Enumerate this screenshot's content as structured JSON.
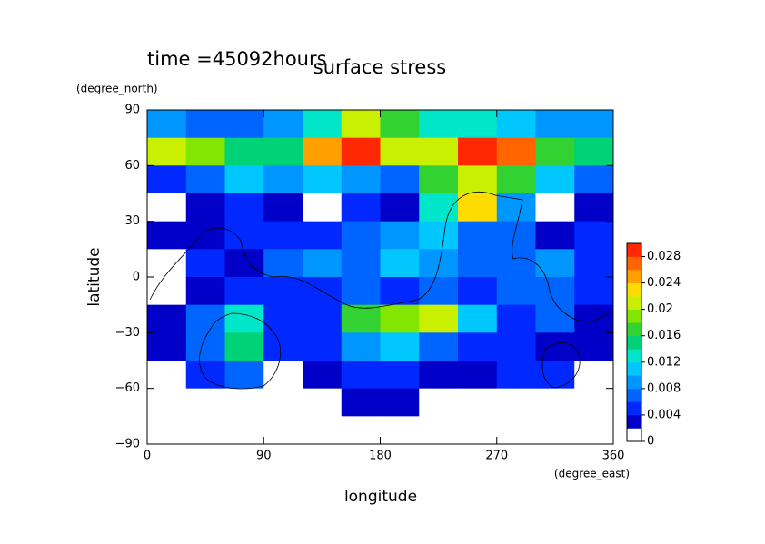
{
  "chart_data": {
    "type": "heatmap",
    "title": "surface stress",
    "subtitle": "time =45092hours",
    "x_label": "longitude",
    "y_label": "latitude",
    "x_unit": "(degree_east)",
    "y_unit": "(degree_north)",
    "x": [
      15,
      45,
      75,
      105,
      135,
      165,
      195,
      225,
      255,
      285,
      315,
      345
    ],
    "y": [
      82.5,
      67.5,
      52.5,
      37.5,
      22.5,
      7.5,
      -7.5,
      -22.5,
      -37.5,
      -52.5,
      -67.5,
      -82.5
    ],
    "z": [
      [
        0.008,
        0.006,
        0.006,
        0.008,
        0.012,
        0.02,
        0.016,
        0.012,
        0.012,
        0.01,
        0.008,
        0.008
      ],
      [
        0.02,
        0.018,
        0.014,
        0.014,
        0.024,
        0.03,
        0.02,
        0.02,
        0.03,
        0.026,
        0.016,
        0.014
      ],
      [
        0.004,
        0.006,
        0.01,
        0.008,
        0.01,
        0.008,
        0.006,
        0.016,
        0.02,
        0.016,
        0.01,
        0.006
      ],
      [
        0,
        0.002,
        0.004,
        0.002,
        0,
        0.004,
        0.002,
        0.012,
        0.022,
        0.008,
        0,
        0.002
      ],
      [
        0.002,
        0.002,
        0.004,
        0.004,
        0.004,
        0.006,
        0.008,
        0.01,
        0.006,
        0.006,
        0.002,
        0.004
      ],
      [
        0,
        0.004,
        0.002,
        0.006,
        0.008,
        0.006,
        0.01,
        0.008,
        0.006,
        0.006,
        0.008,
        0.004
      ],
      [
        0,
        0.002,
        0.004,
        0.004,
        0.004,
        0.006,
        0.004,
        0.006,
        0.004,
        0.006,
        0.006,
        0.004
      ],
      [
        0.002,
        0.006,
        0.012,
        0.004,
        0.004,
        0.016,
        0.018,
        0.02,
        0.01,
        0.004,
        0.006,
        0.002
      ],
      [
        0.002,
        0.006,
        0.014,
        0.004,
        0.004,
        0.008,
        0.01,
        0.006,
        0.004,
        0.004,
        0.002,
        0.002
      ],
      [
        0,
        0.004,
        0.006,
        0,
        0.002,
        0.004,
        0.004,
        0.002,
        0.002,
        0.004,
        0.004,
        0
      ],
      [
        0,
        0,
        0,
        0,
        0,
        0.002,
        0.002,
        0,
        0,
        0,
        0,
        0
      ],
      [
        0,
        0,
        0,
        0,
        0,
        0,
        0,
        0,
        0,
        0,
        0,
        0
      ]
    ],
    "xlim": [
      0,
      360
    ],
    "xticks": [
      0,
      90,
      180,
      270,
      360
    ],
    "ylim": [
      -90,
      90
    ],
    "yticks": [
      {
        "value": -90,
        "label": "−90"
      },
      {
        "value": -60,
        "label": "−60"
      },
      {
        "value": -30,
        "label": "−30"
      },
      0,
      30,
      60,
      90
    ],
    "colorbar": {
      "lim": [
        0,
        0.03
      ],
      "ticks": [
        0,
        0.004,
        0.008,
        0.012,
        0.016,
        0.02,
        0.024,
        0.028
      ],
      "colors": [
        "#ffffff",
        "#0000c8",
        "#0028ff",
        "#0064ff",
        "#0096ff",
        "#00c8ff",
        "#00e6c8",
        "#00d278",
        "#32d232",
        "#82e600",
        "#c8f000",
        "#ffdc00",
        "#ffa000",
        "#ff6400",
        "#ff2800"
      ]
    }
  }
}
